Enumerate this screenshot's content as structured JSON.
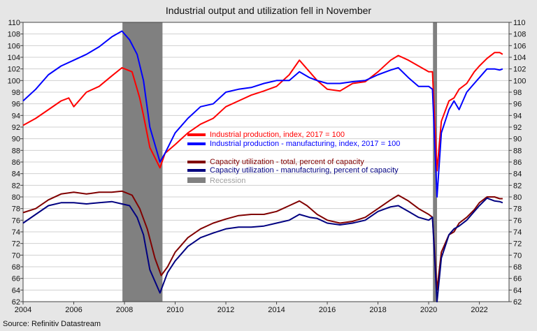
{
  "chart_data": {
    "type": "line",
    "title": "Industrial output and utilization fell in November",
    "source": "Source: Refinitiv Datastream",
    "xlim": [
      2004,
      2023.17
    ],
    "ylim": [
      62,
      110
    ],
    "x_ticks": [
      2004,
      2006,
      2008,
      2010,
      2012,
      2014,
      2016,
      2018,
      2020,
      2022
    ],
    "y_ticks": [
      62,
      64,
      66,
      68,
      70,
      72,
      74,
      76,
      78,
      80,
      82,
      84,
      86,
      88,
      90,
      92,
      94,
      96,
      98,
      100,
      102,
      104,
      106,
      108,
      110
    ],
    "grid": true,
    "y_axis": "both sides",
    "legend_position": "center",
    "recessions": [
      {
        "name": "Recession",
        "start": 2007.92,
        "end": 2009.5,
        "color": "#808080"
      },
      {
        "start": 2020.17,
        "end": 2020.33,
        "color": "#808080"
      }
    ],
    "series": [
      {
        "name": "Industrial production, index, 2017 = 100",
        "color": "#ff0000",
        "points": [
          [
            2004.0,
            92.3
          ],
          [
            2004.5,
            93.5
          ],
          [
            2005.0,
            95.0
          ],
          [
            2005.5,
            96.5
          ],
          [
            2005.8,
            97.0
          ],
          [
            2006.0,
            95.5
          ],
          [
            2006.5,
            98.0
          ],
          [
            2007.0,
            99.0
          ],
          [
            2007.5,
            100.8
          ],
          [
            2007.9,
            102.2
          ],
          [
            2008.3,
            101.5
          ],
          [
            2008.6,
            97.0
          ],
          [
            2008.75,
            94.0
          ],
          [
            2009.0,
            88.5
          ],
          [
            2009.4,
            85.0
          ],
          [
            2009.6,
            87.5
          ],
          [
            2010.0,
            89.0
          ],
          [
            2010.5,
            91.0
          ],
          [
            2011.0,
            92.5
          ],
          [
            2011.5,
            93.5
          ],
          [
            2012.0,
            95.5
          ],
          [
            2012.5,
            96.5
          ],
          [
            2013.0,
            97.5
          ],
          [
            2013.5,
            98.2
          ],
          [
            2014.0,
            99.0
          ],
          [
            2014.5,
            101.0
          ],
          [
            2014.9,
            103.5
          ],
          [
            2015.2,
            102.0
          ],
          [
            2015.6,
            100.0
          ],
          [
            2016.0,
            98.5
          ],
          [
            2016.5,
            98.2
          ],
          [
            2017.0,
            99.5
          ],
          [
            2017.5,
            99.8
          ],
          [
            2018.0,
            101.5
          ],
          [
            2018.5,
            103.5
          ],
          [
            2018.8,
            104.3
          ],
          [
            2019.2,
            103.5
          ],
          [
            2019.6,
            102.5
          ],
          [
            2020.0,
            101.5
          ],
          [
            2020.15,
            101.5
          ],
          [
            2020.33,
            84.5
          ],
          [
            2020.5,
            93.0
          ],
          [
            2020.8,
            96.5
          ],
          [
            2021.0,
            97.0
          ],
          [
            2021.2,
            98.5
          ],
          [
            2021.5,
            99.5
          ],
          [
            2021.8,
            101.5
          ],
          [
            2022.0,
            102.5
          ],
          [
            2022.3,
            103.8
          ],
          [
            2022.6,
            104.8
          ],
          [
            2022.8,
            104.8
          ],
          [
            2022.92,
            104.5
          ]
        ]
      },
      {
        "name": "Industrial production - manufacturing, index, 2017 = 100",
        "color": "#0000ff",
        "points": [
          [
            2004.0,
            96.5
          ],
          [
            2004.5,
            98.5
          ],
          [
            2005.0,
            101.0
          ],
          [
            2005.5,
            102.5
          ],
          [
            2006.0,
            103.5
          ],
          [
            2006.5,
            104.5
          ],
          [
            2007.0,
            105.8
          ],
          [
            2007.5,
            107.5
          ],
          [
            2007.9,
            108.5
          ],
          [
            2008.2,
            107.0
          ],
          [
            2008.5,
            104.5
          ],
          [
            2008.75,
            100.0
          ],
          [
            2009.0,
            92.0
          ],
          [
            2009.4,
            86.0
          ],
          [
            2009.6,
            87.5
          ],
          [
            2010.0,
            91.0
          ],
          [
            2010.5,
            93.5
          ],
          [
            2011.0,
            95.5
          ],
          [
            2011.5,
            96.0
          ],
          [
            2012.0,
            98.0
          ],
          [
            2012.5,
            98.5
          ],
          [
            2013.0,
            98.8
          ],
          [
            2013.5,
            99.5
          ],
          [
            2014.0,
            100.0
          ],
          [
            2014.5,
            100.0
          ],
          [
            2014.9,
            101.5
          ],
          [
            2015.3,
            100.5
          ],
          [
            2015.6,
            100.0
          ],
          [
            2016.0,
            99.5
          ],
          [
            2016.5,
            99.5
          ],
          [
            2017.0,
            99.8
          ],
          [
            2017.5,
            100.0
          ],
          [
            2018.0,
            101.0
          ],
          [
            2018.5,
            101.8
          ],
          [
            2018.8,
            102.2
          ],
          [
            2019.2,
            100.5
          ],
          [
            2019.6,
            99.0
          ],
          [
            2020.0,
            99.0
          ],
          [
            2020.15,
            98.5
          ],
          [
            2020.33,
            80.0
          ],
          [
            2020.5,
            91.0
          ],
          [
            2020.8,
            95.0
          ],
          [
            2021.0,
            96.5
          ],
          [
            2021.2,
            95.0
          ],
          [
            2021.5,
            98.0
          ],
          [
            2021.8,
            99.5
          ],
          [
            2022.0,
            100.5
          ],
          [
            2022.3,
            102.0
          ],
          [
            2022.6,
            102.0
          ],
          [
            2022.8,
            101.8
          ],
          [
            2022.92,
            102.0
          ]
        ]
      },
      {
        "name": "Capacity utilization - total, percent of capacity",
        "color": "#800000",
        "points": [
          [
            2004.0,
            77.3
          ],
          [
            2004.5,
            78.0
          ],
          [
            2005.0,
            79.5
          ],
          [
            2005.5,
            80.5
          ],
          [
            2006.0,
            80.8
          ],
          [
            2006.5,
            80.5
          ],
          [
            2007.0,
            80.8
          ],
          [
            2007.5,
            80.8
          ],
          [
            2007.9,
            81.0
          ],
          [
            2008.3,
            80.3
          ],
          [
            2008.6,
            78.0
          ],
          [
            2008.9,
            74.5
          ],
          [
            2009.2,
            69.5
          ],
          [
            2009.45,
            66.5
          ],
          [
            2009.7,
            68.0
          ],
          [
            2010.0,
            70.5
          ],
          [
            2010.5,
            73.0
          ],
          [
            2011.0,
            74.5
          ],
          [
            2011.5,
            75.5
          ],
          [
            2012.0,
            76.2
          ],
          [
            2012.5,
            76.8
          ],
          [
            2013.0,
            77.0
          ],
          [
            2013.5,
            77.0
          ],
          [
            2014.0,
            77.5
          ],
          [
            2014.5,
            78.5
          ],
          [
            2014.9,
            79.3
          ],
          [
            2015.2,
            78.5
          ],
          [
            2015.6,
            77.0
          ],
          [
            2016.0,
            76.0
          ],
          [
            2016.5,
            75.5
          ],
          [
            2017.0,
            75.8
          ],
          [
            2017.5,
            76.5
          ],
          [
            2018.0,
            78.0
          ],
          [
            2018.5,
            79.5
          ],
          [
            2018.8,
            80.3
          ],
          [
            2019.2,
            79.3
          ],
          [
            2019.6,
            78.0
          ],
          [
            2020.0,
            77.0
          ],
          [
            2020.15,
            76.5
          ],
          [
            2020.33,
            64.0
          ],
          [
            2020.5,
            70.5
          ],
          [
            2020.8,
            73.5
          ],
          [
            2021.0,
            74.0
          ],
          [
            2021.2,
            75.5
          ],
          [
            2021.5,
            76.5
          ],
          [
            2021.8,
            77.8
          ],
          [
            2022.0,
            79.0
          ],
          [
            2022.3,
            80.0
          ],
          [
            2022.6,
            80.0
          ],
          [
            2022.8,
            79.7
          ],
          [
            2022.92,
            79.7
          ]
        ]
      },
      {
        "name": "Capacity utilization - manufacturing, percent of capacity",
        "color": "#000080",
        "points": [
          [
            2004.0,
            75.5
          ],
          [
            2004.5,
            77.0
          ],
          [
            2005.0,
            78.5
          ],
          [
            2005.5,
            79.0
          ],
          [
            2006.0,
            79.0
          ],
          [
            2006.5,
            78.8
          ],
          [
            2007.0,
            79.0
          ],
          [
            2007.5,
            79.2
          ],
          [
            2007.9,
            78.8
          ],
          [
            2008.2,
            78.5
          ],
          [
            2008.5,
            76.5
          ],
          [
            2008.75,
            73.5
          ],
          [
            2009.0,
            67.5
          ],
          [
            2009.4,
            63.5
          ],
          [
            2009.7,
            67.0
          ],
          [
            2010.0,
            69.0
          ],
          [
            2010.5,
            71.5
          ],
          [
            2011.0,
            73.0
          ],
          [
            2011.5,
            73.8
          ],
          [
            2012.0,
            74.5
          ],
          [
            2012.5,
            74.8
          ],
          [
            2013.0,
            74.8
          ],
          [
            2013.5,
            75.0
          ],
          [
            2014.0,
            75.5
          ],
          [
            2014.5,
            76.0
          ],
          [
            2014.9,
            77.0
          ],
          [
            2015.3,
            76.5
          ],
          [
            2015.6,
            76.3
          ],
          [
            2016.0,
            75.5
          ],
          [
            2016.5,
            75.2
          ],
          [
            2017.0,
            75.5
          ],
          [
            2017.5,
            76.0
          ],
          [
            2018.0,
            77.5
          ],
          [
            2018.5,
            78.3
          ],
          [
            2018.8,
            78.5
          ],
          [
            2019.2,
            77.5
          ],
          [
            2019.6,
            76.5
          ],
          [
            2020.0,
            76.0
          ],
          [
            2020.15,
            76.5
          ],
          [
            2020.33,
            62.0
          ],
          [
            2020.5,
            69.5
          ],
          [
            2020.8,
            73.5
          ],
          [
            2021.0,
            74.5
          ],
          [
            2021.2,
            75.0
          ],
          [
            2021.5,
            76.0
          ],
          [
            2021.8,
            77.5
          ],
          [
            2022.0,
            78.5
          ],
          [
            2022.3,
            79.8
          ],
          [
            2022.6,
            79.3
          ],
          [
            2022.8,
            79.2
          ],
          [
            2022.92,
            79.0
          ]
        ]
      }
    ]
  }
}
